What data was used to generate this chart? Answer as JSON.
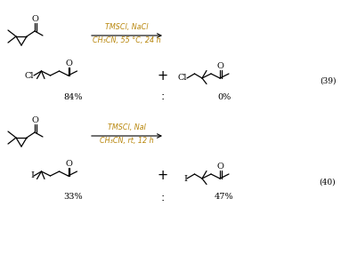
{
  "background": "#ffffff",
  "text_color": "#000000",
  "reagent_color": "#b8860b",
  "reaction1": {
    "reagent_line1": "TMSCl, NaCl",
    "reagent_line2": "CH₃CN, 55 °C, 24 h",
    "product1_yield": "84%",
    "product2_yield": "0%",
    "equation_num": "(39)"
  },
  "reaction2": {
    "reagent_line1": "TMSCl, NaI",
    "reagent_line2": "CH₃CN, rt, 12 h",
    "product1_yield": "33%",
    "product2_yield": "47%",
    "equation_num": "(40)"
  },
  "font_size_base": 6.5,
  "font_size_reagent": 5.8,
  "font_size_yield": 7.0
}
